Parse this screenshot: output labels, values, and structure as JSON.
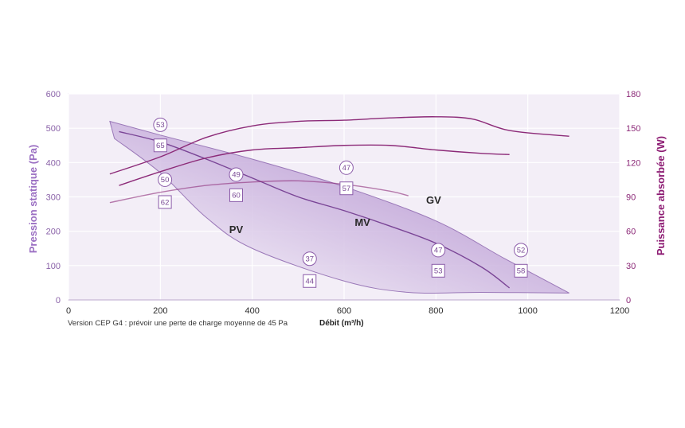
{
  "chart_data": {
    "type": "line",
    "xlabel": "Débit (m³/h)",
    "ylabel_left": "Pression statique (Pa)",
    "ylabel_right": "Puissance absorbée (W)",
    "xlim": [
      0,
      1200
    ],
    "ylim_left": [
      0,
      600
    ],
    "ylim_right": [
      0,
      180
    ],
    "x_ticks": [
      "0",
      "200",
      "400",
      "600",
      "800",
      "1000",
      "1200"
    ],
    "y_left_ticks": [
      "0",
      "100",
      "200",
      "300",
      "400",
      "500",
      "600"
    ],
    "y_right_ticks": [
      "0",
      "30",
      "60",
      "90",
      "120",
      "150",
      "180"
    ],
    "grid": true,
    "note": "Version CEP G4 : prévoir une perte de charge moyenne de 45 Pa",
    "colors": {
      "axis_left": "#9a6ec2",
      "axis_right": "#8c1a72",
      "plot_bg": "#f3eef7",
      "pressure_line": "#7a4596",
      "power_line": "#8c2a78"
    },
    "zones": [
      {
        "name": "PV",
        "label_at": [
          365,
          195
        ]
      },
      {
        "name": "MV",
        "label_at": [
          640,
          215
        ]
      },
      {
        "name": "GV",
        "label_at": [
          795,
          280
        ]
      }
    ],
    "pressure_envelope": {
      "upper": [
        [
          90,
          520
        ],
        [
          200,
          480
        ],
        [
          400,
          410
        ],
        [
          600,
          330
        ],
        [
          800,
          230
        ],
        [
          950,
          120
        ],
        [
          1090,
          20
        ]
      ],
      "lower": [
        [
          1090,
          20
        ],
        [
          900,
          22
        ],
        [
          740,
          22
        ],
        [
          600,
          55
        ],
        [
          400,
          150
        ],
        [
          300,
          240
        ],
        [
          200,
          370
        ],
        [
          100,
          470
        ]
      ]
    },
    "series": [
      {
        "name": "MV",
        "axis": "left",
        "points": [
          [
            110,
            490
          ],
          [
            200,
            460
          ],
          [
            300,
            410
          ],
          [
            400,
            355
          ],
          [
            500,
            300
          ],
          [
            600,
            260
          ],
          [
            700,
            215
          ],
          [
            800,
            165
          ],
          [
            900,
            95
          ],
          [
            960,
            35
          ]
        ]
      },
      {
        "name": "GV",
        "axis": "right",
        "points": [
          [
            90,
            110
          ],
          [
            200,
            125
          ],
          [
            300,
            142
          ],
          [
            400,
            152
          ],
          [
            500,
            156
          ],
          [
            600,
            157
          ],
          [
            700,
            159
          ],
          [
            800,
            160
          ],
          [
            880,
            158
          ],
          [
            960,
            148
          ],
          [
            1090,
            143
          ]
        ]
      },
      {
        "name": "MV",
        "axis": "right",
        "points": [
          [
            110,
            100
          ],
          [
            200,
            112
          ],
          [
            300,
            124
          ],
          [
            400,
            131
          ],
          [
            500,
            133
          ],
          [
            600,
            135
          ],
          [
            700,
            135
          ],
          [
            800,
            131
          ],
          [
            900,
            128
          ],
          [
            960,
            127
          ]
        ]
      },
      {
        "name": "PV",
        "axis": "right",
        "points": [
          [
            90,
            85
          ],
          [
            200,
            94
          ],
          [
            300,
            100
          ],
          [
            400,
            103
          ],
          [
            500,
            104
          ],
          [
            600,
            101
          ],
          [
            700,
            95
          ],
          [
            740,
            91
          ]
        ]
      }
    ],
    "markers": [
      {
        "shape": "circle",
        "value": "53",
        "x": 200,
        "y": 510
      },
      {
        "shape": "square",
        "value": "65",
        "x": 200,
        "y": 450
      },
      {
        "shape": "circle",
        "value": "50",
        "x": 210,
        "y": 350
      },
      {
        "shape": "square",
        "value": "62",
        "x": 210,
        "y": 285
      },
      {
        "shape": "circle",
        "value": "49",
        "x": 365,
        "y": 365
      },
      {
        "shape": "square",
        "value": "60",
        "x": 365,
        "y": 305
      },
      {
        "shape": "circle",
        "value": "47",
        "x": 605,
        "y": 385
      },
      {
        "shape": "square",
        "value": "57",
        "x": 605,
        "y": 325
      },
      {
        "shape": "circle",
        "value": "37",
        "x": 525,
        "y": 120
      },
      {
        "shape": "square",
        "value": "44",
        "x": 525,
        "y": 55
      },
      {
        "shape": "circle",
        "value": "47",
        "x": 805,
        "y": 145
      },
      {
        "shape": "square",
        "value": "53",
        "x": 805,
        "y": 85
      },
      {
        "shape": "circle",
        "value": "52",
        "x": 985,
        "y": 145
      },
      {
        "shape": "square",
        "value": "58",
        "x": 985,
        "y": 85
      }
    ]
  }
}
